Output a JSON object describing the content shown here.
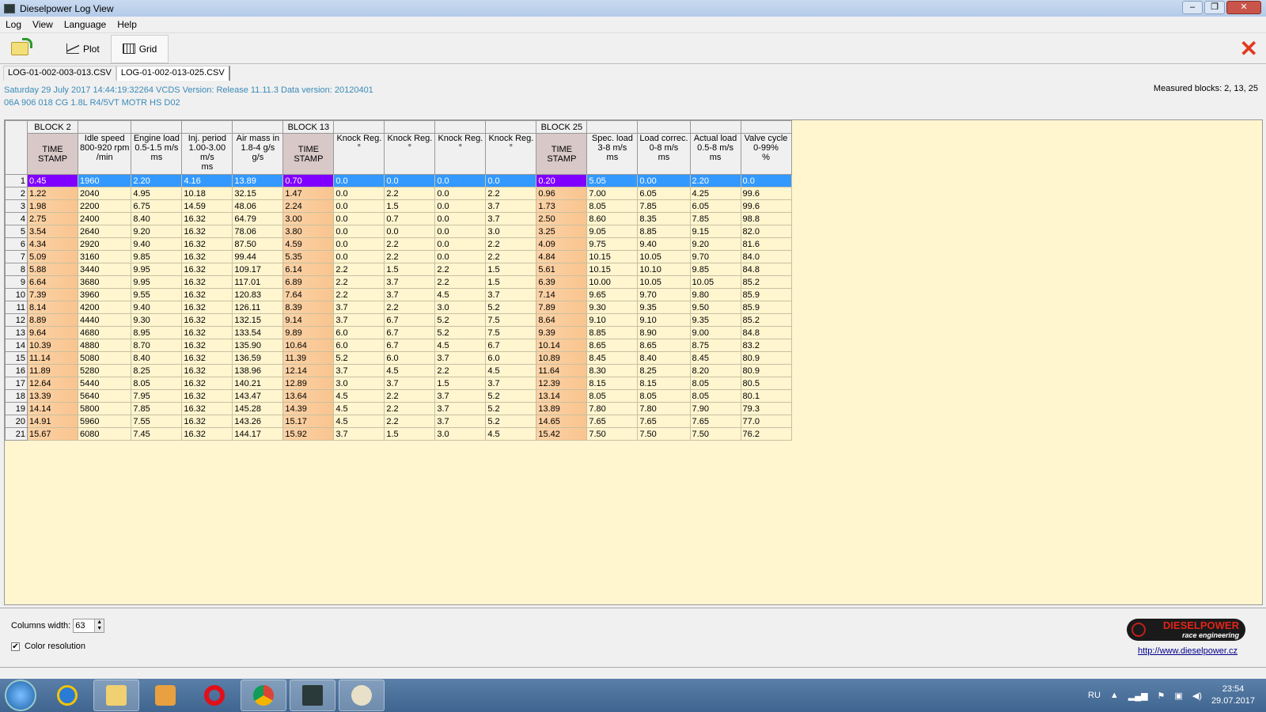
{
  "window": {
    "title": "Dieselpower Log View",
    "minimize": "–",
    "maximize": "❐",
    "close": "✕"
  },
  "menu": [
    "Log",
    "View",
    "Language",
    "Help"
  ],
  "toolbar": {
    "open_icon": "folder-open-icon",
    "plot": "Plot",
    "grid": "Grid",
    "close": "✕"
  },
  "tabs": [
    "LOG-01-002-003-013.CSV",
    "LOG-01-002-013-025.CSV"
  ],
  "active_tab": 1,
  "info": {
    "line1": "Saturday 29 July 2017 14:44:19:32264 VCDS Version: Release 11.11.3 Data version: 20120401",
    "line2": "06A 906 018 CG  1.8L R4/5VT MOTR HS D02",
    "measured": "Measured blocks: 2, 13, 25"
  },
  "grid": {
    "columns": [
      {
        "block": "BLOCK 2",
        "header": [
          "",
          "TIME",
          "STAMP"
        ],
        "timestamp": true
      },
      {
        "block": "",
        "header": [
          "Idle speed",
          "800-920 rpm",
          "/min"
        ]
      },
      {
        "block": "",
        "header": [
          "Engine load",
          "0.5-1.5 m/s",
          "ms"
        ]
      },
      {
        "block": "",
        "header": [
          "Inj. period",
          "1.00-3.00",
          "m/s",
          "ms"
        ]
      },
      {
        "block": "",
        "header": [
          "Air mass in",
          "1.8-4 g/s",
          "g/s"
        ]
      },
      {
        "block": "BLOCK 13",
        "header": [
          "",
          "TIME",
          "STAMP"
        ],
        "timestamp": true
      },
      {
        "block": "",
        "header": [
          "Knock Reg.",
          "°"
        ]
      },
      {
        "block": "",
        "header": [
          "Knock Reg.",
          "°"
        ]
      },
      {
        "block": "",
        "header": [
          "Knock Reg.",
          "°"
        ]
      },
      {
        "block": "",
        "header": [
          "Knock Reg.",
          "°"
        ]
      },
      {
        "block": "BLOCK 25",
        "header": [
          "",
          "TIME",
          "STAMP"
        ],
        "timestamp": true
      },
      {
        "block": "",
        "header": [
          "Spec. load",
          "3-8 m/s",
          "ms"
        ]
      },
      {
        "block": "",
        "header": [
          "Load correc.",
          "0-8 m/s",
          "ms"
        ]
      },
      {
        "block": "",
        "header": [
          "Actual load",
          "0.5-8 m/s",
          "ms"
        ]
      },
      {
        "block": "",
        "header": [
          "Valve cycle",
          "0-99%",
          "%"
        ]
      }
    ],
    "selected_row": 1,
    "rows": [
      [
        "0.45",
        "1960",
        "2.20",
        "4.16",
        "13.89",
        "0.70",
        "0.0",
        "0.0",
        "0.0",
        "0.0",
        "0.20",
        "5.05",
        "0.00",
        "2.20",
        "0.0"
      ],
      [
        "1.22",
        "2040",
        "4.95",
        "10.18",
        "32.15",
        "1.47",
        "0.0",
        "2.2",
        "0.0",
        "2.2",
        "0.96",
        "7.00",
        "6.05",
        "4.25",
        "99.6"
      ],
      [
        "1.98",
        "2200",
        "6.75",
        "14.59",
        "48.06",
        "2.24",
        "0.0",
        "1.5",
        "0.0",
        "3.7",
        "1.73",
        "8.05",
        "7.85",
        "6.05",
        "99.6"
      ],
      [
        "2.75",
        "2400",
        "8.40",
        "16.32",
        "64.79",
        "3.00",
        "0.0",
        "0.7",
        "0.0",
        "3.7",
        "2.50",
        "8.60",
        "8.35",
        "7.85",
        "98.8"
      ],
      [
        "3.54",
        "2640",
        "9.20",
        "16.32",
        "78.06",
        "3.80",
        "0.0",
        "0.0",
        "0.0",
        "3.0",
        "3.25",
        "9.05",
        "8.85",
        "9.15",
        "82.0"
      ],
      [
        "4.34",
        "2920",
        "9.40",
        "16.32",
        "87.50",
        "4.59",
        "0.0",
        "2.2",
        "0.0",
        "2.2",
        "4.09",
        "9.75",
        "9.40",
        "9.20",
        "81.6"
      ],
      [
        "5.09",
        "3160",
        "9.85",
        "16.32",
        "99.44",
        "5.35",
        "0.0",
        "2.2",
        "0.0",
        "2.2",
        "4.84",
        "10.15",
        "10.05",
        "9.70",
        "84.0"
      ],
      [
        "5.88",
        "3440",
        "9.95",
        "16.32",
        "109.17",
        "6.14",
        "2.2",
        "1.5",
        "2.2",
        "1.5",
        "5.61",
        "10.15",
        "10.10",
        "9.85",
        "84.8"
      ],
      [
        "6.64",
        "3680",
        "9.95",
        "16.32",
        "117.01",
        "6.89",
        "2.2",
        "3.7",
        "2.2",
        "1.5",
        "6.39",
        "10.00",
        "10.05",
        "10.05",
        "85.2"
      ],
      [
        "7.39",
        "3960",
        "9.55",
        "16.32",
        "120.83",
        "7.64",
        "2.2",
        "3.7",
        "4.5",
        "3.7",
        "7.14",
        "9.65",
        "9.70",
        "9.80",
        "85.9"
      ],
      [
        "8.14",
        "4200",
        "9.40",
        "16.32",
        "126.11",
        "8.39",
        "3.7",
        "2.2",
        "3.0",
        "5.2",
        "7.89",
        "9.30",
        "9.35",
        "9.50",
        "85.9"
      ],
      [
        "8.89",
        "4440",
        "9.30",
        "16.32",
        "132.15",
        "9.14",
        "3.7",
        "6.7",
        "5.2",
        "7.5",
        "8.64",
        "9.10",
        "9.10",
        "9.35",
        "85.2"
      ],
      [
        "9.64",
        "4680",
        "8.95",
        "16.32",
        "133.54",
        "9.89",
        "6.0",
        "6.7",
        "5.2",
        "7.5",
        "9.39",
        "8.85",
        "8.90",
        "9.00",
        "84.8"
      ],
      [
        "10.39",
        "4880",
        "8.70",
        "16.32",
        "135.90",
        "10.64",
        "6.0",
        "6.7",
        "4.5",
        "6.7",
        "10.14",
        "8.65",
        "8.65",
        "8.75",
        "83.2"
      ],
      [
        "11.14",
        "5080",
        "8.40",
        "16.32",
        "136.59",
        "11.39",
        "5.2",
        "6.0",
        "3.7",
        "6.0",
        "10.89",
        "8.45",
        "8.40",
        "8.45",
        "80.9"
      ],
      [
        "11.89",
        "5280",
        "8.25",
        "16.32",
        "138.96",
        "12.14",
        "3.7",
        "4.5",
        "2.2",
        "4.5",
        "11.64",
        "8.30",
        "8.25",
        "8.20",
        "80.9"
      ],
      [
        "12.64",
        "5440",
        "8.05",
        "16.32",
        "140.21",
        "12.89",
        "3.0",
        "3.7",
        "1.5",
        "3.7",
        "12.39",
        "8.15",
        "8.15",
        "8.05",
        "80.5"
      ],
      [
        "13.39",
        "5640",
        "7.95",
        "16.32",
        "143.47",
        "13.64",
        "4.5",
        "2.2",
        "3.7",
        "5.2",
        "13.14",
        "8.05",
        "8.05",
        "8.05",
        "80.1"
      ],
      [
        "14.14",
        "5800",
        "7.85",
        "16.32",
        "145.28",
        "14.39",
        "4.5",
        "2.2",
        "3.7",
        "5.2",
        "13.89",
        "7.80",
        "7.80",
        "7.90",
        "79.3"
      ],
      [
        "14.91",
        "5960",
        "7.55",
        "16.32",
        "143.26",
        "15.17",
        "4.5",
        "2.2",
        "3.7",
        "5.2",
        "14.65",
        "7.65",
        "7.65",
        "7.65",
        "77.0"
      ],
      [
        "15.67",
        "6080",
        "7.45",
        "16.32",
        "144.17",
        "15.92",
        "3.7",
        "1.5",
        "3.0",
        "4.5",
        "15.42",
        "7.50",
        "7.50",
        "7.50",
        "76.2"
      ]
    ]
  },
  "bottom": {
    "columns_width_label": "Columns width:",
    "columns_width_value": "63",
    "color_resolution_label": "Color resolution",
    "color_resolution_checked": true,
    "logo_text": "DIESELPOWER",
    "logo_sub": "race engineering",
    "url": "http://www.dieselpower.cz"
  },
  "taskbar": {
    "apps": [
      "internet-explorer-icon",
      "file-explorer-icon",
      "media-player-icon",
      "opera-icon",
      "chrome-icon",
      "dieselpower-log-view-icon",
      "paint-icon"
    ],
    "lang": "RU",
    "time": "23:54",
    "date": "29.07.2017"
  },
  "colors": {
    "timestamp": "#f9c48e",
    "grid_bg": "#fff5cf",
    "selection": "#3399ff",
    "selection_timestamp": "#8000ff",
    "info_text": "#3a8ab8",
    "close_x": "#e03a1e"
  }
}
